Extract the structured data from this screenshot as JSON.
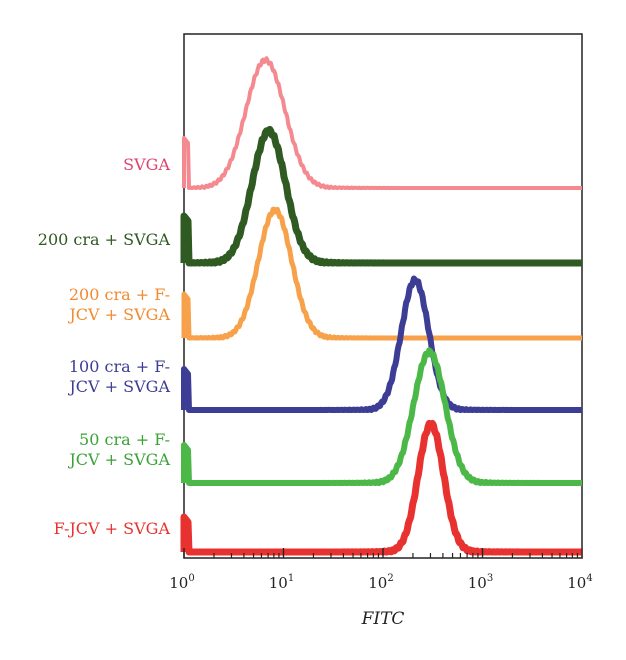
{
  "chart_data": {
    "type": "line",
    "title": "",
    "xlabel": "FITC",
    "ylabel": "",
    "x_scale": "log",
    "xlim": [
      1,
      10000
    ],
    "x_ticks": [
      {
        "base": "10",
        "exp": "0",
        "value": 1
      },
      {
        "base": "10",
        "exp": "1",
        "value": 10
      },
      {
        "base": "10",
        "exp": "2",
        "value": 100
      },
      {
        "base": "10",
        "exp": "3",
        "value": 1000
      },
      {
        "base": "10",
        "exp": "4",
        "value": 10000
      }
    ],
    "grid": false,
    "legend": "left-labels",
    "series": [
      {
        "name": "SVGA",
        "color": "#f48a8f",
        "label_color": "#e0416e",
        "peak_x": 6,
        "peak_width": 0.2,
        "peak_height": 1.0,
        "baseline": 0.0
      },
      {
        "name": "200 cra + SVGA",
        "color": "#2f5a22",
        "label_color": "#2f5a22",
        "peak_x": 6.5,
        "peak_width": 0.17,
        "peak_height": 1.0,
        "baseline": 0.0
      },
      {
        "name": "200 cra + F-\nJCV + SVGA",
        "color": "#f7a24b",
        "label_color": "#f28a2e",
        "peak_x": 7.5,
        "peak_width": 0.17,
        "peak_height": 1.0,
        "baseline": 0.0
      },
      {
        "name": "100 cra + F-\nJCV + SVGA",
        "color": "#3d3d96",
        "label_color": "#3d3d96",
        "peak_x": 200,
        "peak_width": 0.14,
        "peak_height": 1.0,
        "baseline": 0.0
      },
      {
        "name": "50 cra + F-\nJCV + SVGA",
        "color": "#4cb848",
        "label_color": "#3aa237",
        "peak_x": 280,
        "peak_width": 0.16,
        "peak_height": 1.0,
        "baseline": 0.0
      },
      {
        "name": "F-JCV + SVGA",
        "color": "#e8322f",
        "label_color": "#e8322f",
        "peak_x": 290,
        "peak_width": 0.13,
        "peak_height": 1.0,
        "baseline": 0.0
      }
    ]
  }
}
